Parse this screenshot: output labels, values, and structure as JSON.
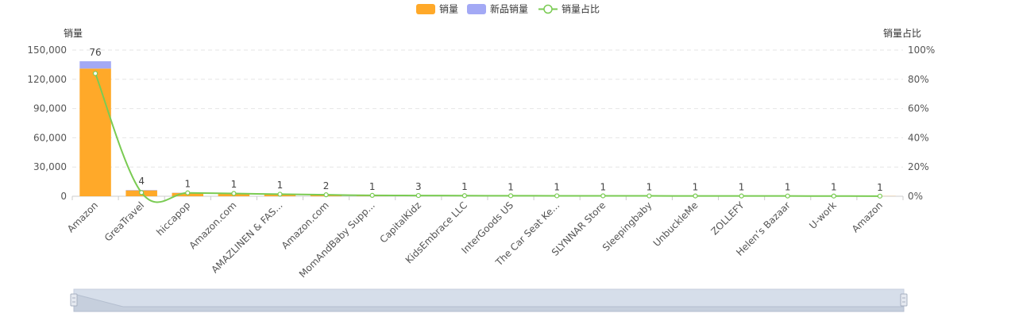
{
  "legend": {
    "items": [
      {
        "label": "销量",
        "color": "#FFA929",
        "type": "bar"
      },
      {
        "label": "新品销量",
        "color": "#A3A9F5",
        "type": "bar"
      },
      {
        "label": "销量占比",
        "color": "#7ACB53",
        "type": "line"
      }
    ]
  },
  "chart_data": {
    "type": "bar",
    "categories": [
      "Amazon",
      "GreaTravel",
      "hiccapop",
      "Amazon.com",
      "AMAZLINEN & FAS...",
      "Amazon.com",
      "MomAndBaby Supp...",
      "CapitalKidz",
      "KidsEmbrace LLC",
      "InterGoods US",
      "The Car Seat Ke...",
      "SLYNNAR Store",
      "Sleepingbaby",
      "UnbuckleMe",
      "ZOLLEFY",
      "Helen’s Bazaar",
      "U-work",
      "Amazon"
    ],
    "series": [
      {
        "name": "销量",
        "type": "bar",
        "stack": "total",
        "color": "#FFA929",
        "values": [
          131000,
          6000,
          3500,
          3000,
          2200,
          1500,
          900,
          700,
          600,
          500,
          450,
          400,
          380,
          350,
          300,
          250,
          200,
          150
        ]
      },
      {
        "name": "新品销量",
        "type": "bar",
        "stack": "total",
        "color": "#A3A9F5",
        "values": [
          7500,
          400,
          200,
          150,
          100,
          80,
          50,
          40,
          30,
          25,
          20,
          20,
          15,
          15,
          10,
          10,
          10,
          5
        ]
      },
      {
        "name": "销量占比",
        "type": "line",
        "axis": "right",
        "color": "#7ACB53",
        "values": [
          84.0,
          2.5,
          2.3,
          1.9,
          1.4,
          1.0,
          0.6,
          0.5,
          0.4,
          0.35,
          0.3,
          0.28,
          0.25,
          0.22,
          0.2,
          0.17,
          0.14,
          0.1
        ]
      }
    ],
    "bar_labels": [
      "76",
      "4",
      "1",
      "1",
      "1",
      "2",
      "1",
      "3",
      "1",
      "1",
      "1",
      "1",
      "1",
      "1",
      "1",
      "1",
      "1",
      "1"
    ],
    "y_left": {
      "label": "销量",
      "min": 0,
      "max": 150000,
      "ticks": [
        0,
        30000,
        60000,
        90000,
        120000,
        150000
      ],
      "tick_labels": [
        "0",
        "30,000",
        "60,000",
        "90,000",
        "120,000",
        "150,000"
      ]
    },
    "y_right": {
      "label": "销量占比",
      "min": 0,
      "max": 100,
      "ticks": [
        0,
        20,
        40,
        60,
        80,
        100
      ],
      "tick_labels": [
        "0%",
        "20%",
        "40%",
        "60%",
        "80%",
        "100%"
      ]
    },
    "grid": true,
    "legend_position": "top-center",
    "data_zoom": {
      "start": 0,
      "end": 100
    }
  }
}
